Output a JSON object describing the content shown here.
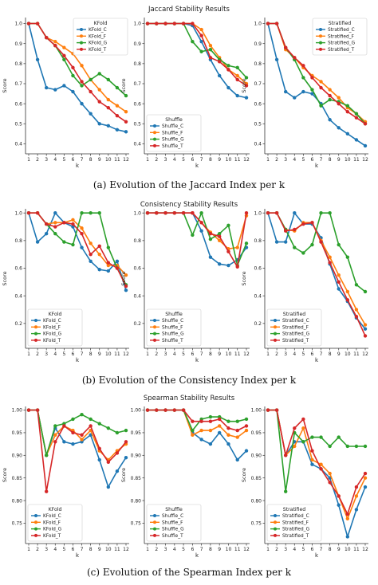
{
  "colors": {
    "C": "#1f77b4",
    "F": "#ff7f0e",
    "G": "#2ca02c",
    "T": "#d62728"
  },
  "chart_data": [
    {
      "type": "line",
      "section_title": "Jaccard Stability Results",
      "caption": "(a) Evolution of the Jaccard Index per k",
      "xlabel": "k",
      "ylabel": "Score",
      "x": [
        1,
        2,
        3,
        4,
        5,
        6,
        7,
        8,
        9,
        10,
        11,
        12
      ],
      "ylim": [
        0.35,
        1.03
      ],
      "yticks": [
        "0.4",
        "0.5",
        "0.6",
        "0.7",
        "0.8",
        "0.9",
        "1.0"
      ],
      "legend_pos": [
        "upper-right",
        "lower-left",
        "upper-right"
      ],
      "panels": [
        {
          "legend_title": "KFold",
          "series": [
            {
              "name": "KFold_C",
              "key": "C",
              "values": [
                1.0,
                0.82,
                0.68,
                0.67,
                0.69,
                0.66,
                0.6,
                0.55,
                0.5,
                0.49,
                0.47,
                0.46
              ]
            },
            {
              "name": "KFold_F",
              "key": "F",
              "values": [
                1.0,
                1.0,
                0.93,
                0.91,
                0.88,
                0.85,
                0.79,
                0.72,
                0.67,
                0.62,
                0.59,
                0.56
              ]
            },
            {
              "name": "KFold_G",
              "key": "G",
              "values": [
                1.0,
                1.0,
                0.93,
                0.89,
                0.82,
                0.74,
                0.69,
                0.72,
                0.75,
                0.72,
                0.68,
                0.64
              ]
            },
            {
              "name": "KFold_T",
              "key": "T",
              "values": [
                1.0,
                1.0,
                0.93,
                0.89,
                0.84,
                0.78,
                0.71,
                0.66,
                0.61,
                0.58,
                0.54,
                0.51
              ]
            }
          ]
        },
        {
          "legend_title": "Shuffle",
          "series": [
            {
              "name": "Shuffle_C",
              "key": "C",
              "values": [
                1.0,
                1.0,
                1.0,
                1.0,
                1.0,
                0.99,
                0.91,
                0.82,
                0.74,
                0.68,
                0.64,
                0.63
              ]
            },
            {
              "name": "Shuffle_F",
              "key": "F",
              "values": [
                1.0,
                1.0,
                1.0,
                1.0,
                1.0,
                1.0,
                0.97,
                0.89,
                0.83,
                0.77,
                0.74,
                0.7
              ]
            },
            {
              "name": "Shuffle_G",
              "key": "G",
              "values": [
                1.0,
                1.0,
                1.0,
                1.0,
                1.0,
                0.91,
                0.86,
                0.87,
                0.82,
                0.79,
                0.78,
                0.73
              ]
            },
            {
              "name": "Shuffle_T",
              "key": "T",
              "values": [
                1.0,
                1.0,
                1.0,
                1.0,
                1.0,
                1.0,
                0.94,
                0.83,
                0.81,
                0.77,
                0.72,
                0.69
              ]
            }
          ]
        },
        {
          "legend_title": "Stratified",
          "series": [
            {
              "name": "Stratified_C",
              "key": "C",
              "values": [
                1.0,
                0.82,
                0.66,
                0.63,
                0.66,
                0.65,
                0.6,
                0.52,
                0.48,
                0.45,
                0.42,
                0.39
              ]
            },
            {
              "name": "Stratified_F",
              "key": "F",
              "values": [
                1.0,
                1.0,
                0.87,
                0.83,
                0.78,
                0.74,
                0.71,
                0.67,
                0.63,
                0.58,
                0.55,
                0.51
              ]
            },
            {
              "name": "Stratified_G",
              "key": "G",
              "values": [
                1.0,
                1.0,
                0.88,
                0.82,
                0.73,
                0.67,
                0.59,
                0.62,
                0.61,
                0.59,
                0.55,
                0.5
              ]
            },
            {
              "name": "Stratified_T",
              "key": "T",
              "values": [
                1.0,
                1.0,
                0.88,
                0.83,
                0.79,
                0.73,
                0.68,
                0.64,
                0.6,
                0.56,
                0.53,
                0.5
              ]
            }
          ]
        }
      ]
    },
    {
      "type": "line",
      "section_title": "Consistency Stability Results",
      "caption": "(b) Evolution of the Consistency Index per k",
      "xlabel": "k",
      "ylabel": "Score",
      "x": [
        1,
        2,
        3,
        4,
        5,
        6,
        7,
        8,
        9,
        10,
        11,
        12
      ],
      "ylim": [
        0.02,
        1.03
      ],
      "yticks": [
        "0.2",
        "0.4",
        "0.6",
        "0.8",
        "1.0"
      ],
      "legend_pos": [
        "lower-left",
        "lower-left",
        "lower-left"
      ],
      "panels": [
        {
          "legend_title": "KFold",
          "series": [
            {
              "name": "KFold_C",
              "key": "C",
              "values": [
                1.0,
                0.79,
                0.85,
                1.0,
                0.93,
                0.9,
                0.75,
                0.65,
                0.59,
                0.58,
                0.65,
                0.44
              ]
            },
            {
              "name": "KFold_F",
              "key": "F",
              "values": [
                1.0,
                1.0,
                0.92,
                0.93,
                0.93,
                0.95,
                0.89,
                0.78,
                0.7,
                0.62,
                0.62,
                0.55
              ]
            },
            {
              "name": "KFold_G",
              "key": "G",
              "values": [
                1.0,
                1.0,
                0.92,
                0.85,
                0.79,
                0.77,
                1.0,
                1.0,
                1.0,
                0.75,
                0.6,
                0.48
              ]
            },
            {
              "name": "KFold_T",
              "key": "T",
              "values": [
                1.0,
                1.0,
                0.92,
                0.9,
                0.93,
                0.92,
                0.85,
                0.7,
                0.76,
                0.64,
                0.6,
                0.47
              ]
            }
          ]
        },
        {
          "legend_title": "Shuffle",
          "series": [
            {
              "name": "Shuffle_C",
              "key": "C",
              "values": [
                1.0,
                1.0,
                1.0,
                1.0,
                1.0,
                1.0,
                0.87,
                0.68,
                0.63,
                0.62,
                0.66,
                0.75
              ]
            },
            {
              "name": "Shuffle_F",
              "key": "F",
              "values": [
                1.0,
                1.0,
                1.0,
                1.0,
                1.0,
                1.0,
                0.93,
                0.86,
                0.8,
                0.74,
                0.75,
                0.98
              ]
            },
            {
              "name": "Shuffle_G",
              "key": "G",
              "values": [
                1.0,
                1.0,
                1.0,
                1.0,
                1.0,
                0.84,
                1.0,
                0.81,
                0.85,
                0.91,
                0.62,
                0.78
              ]
            },
            {
              "name": "Shuffle_T",
              "key": "T",
              "values": [
                1.0,
                1.0,
                1.0,
                1.0,
                1.0,
                1.0,
                0.93,
                0.85,
                0.83,
                0.72,
                0.61,
                1.0
              ]
            }
          ]
        },
        {
          "legend_title": "Stratified",
          "series": [
            {
              "name": "Stratified_C",
              "key": "C",
              "values": [
                1.0,
                0.79,
                0.79,
                1.0,
                0.92,
                0.92,
                0.82,
                0.63,
                0.45,
                0.36,
                0.24,
                0.16
              ]
            },
            {
              "name": "Stratified_F",
              "key": "F",
              "values": [
                1.0,
                1.0,
                0.88,
                0.87,
                0.93,
                0.93,
                0.8,
                0.68,
                0.55,
                0.43,
                0.3,
                0.19
              ]
            },
            {
              "name": "Stratified_G",
              "key": "G",
              "values": [
                1.0,
                1.0,
                0.88,
                0.75,
                0.71,
                0.77,
                1.0,
                1.0,
                0.77,
                0.68,
                0.48,
                0.43
              ]
            },
            {
              "name": "Stratified_T",
              "key": "T",
              "values": [
                1.0,
                1.0,
                0.87,
                0.88,
                0.92,
                0.93,
                0.79,
                0.64,
                0.5,
                0.37,
                0.25,
                0.11
              ]
            }
          ]
        }
      ]
    },
    {
      "type": "line",
      "section_title": "Spearman Stability Results",
      "caption": "(c) Evolution of the Spearman Index per k",
      "xlabel": "k",
      "ylabel": "Score",
      "x": [
        1,
        2,
        3,
        4,
        5,
        6,
        7,
        8,
        9,
        10,
        11,
        12
      ],
      "ylim": [
        0.705,
        1.008
      ],
      "yticks": [
        "0.75",
        "0.80",
        "0.85",
        "0.90",
        "0.95",
        "1.00"
      ],
      "legend_pos": [
        "lower-left",
        "lower-left",
        "lower-left"
      ],
      "panels": [
        {
          "legend_title": "KFold",
          "series": [
            {
              "name": "KFold_C",
              "key": "C",
              "values": [
                1.0,
                1.0,
                0.9,
                0.96,
                0.93,
                0.925,
                0.93,
                0.945,
                0.89,
                0.83,
                0.865,
                0.895
              ]
            },
            {
              "name": "KFold_F",
              "key": "F",
              "values": [
                1.0,
                1.0,
                0.9,
                0.945,
                0.965,
                0.955,
                0.935,
                0.955,
                0.91,
                0.89,
                0.91,
                0.925
              ]
            },
            {
              "name": "KFold_G",
              "key": "G",
              "values": [
                1.0,
                1.0,
                0.9,
                0.965,
                0.97,
                0.98,
                0.99,
                0.98,
                0.97,
                0.96,
                0.95,
                0.955
              ]
            },
            {
              "name": "KFold_T",
              "key": "T",
              "values": [
                1.0,
                1.0,
                0.82,
                0.93,
                0.965,
                0.95,
                0.945,
                0.965,
                0.915,
                0.885,
                0.905,
                0.93
              ]
            }
          ]
        },
        {
          "legend_title": "Shuffle",
          "series": [
            {
              "name": "Shuffle_C",
              "key": "C",
              "values": [
                1.0,
                1.0,
                1.0,
                1.0,
                1.0,
                0.95,
                0.935,
                0.925,
                0.95,
                0.925,
                0.89,
                0.91
              ]
            },
            {
              "name": "Shuffle_F",
              "key": "F",
              "values": [
                1.0,
                1.0,
                1.0,
                1.0,
                1.0,
                0.945,
                0.955,
                0.955,
                0.965,
                0.945,
                0.94,
                0.955
              ]
            },
            {
              "name": "Shuffle_G",
              "key": "G",
              "values": [
                1.0,
                1.0,
                1.0,
                1.0,
                1.0,
                0.955,
                0.98,
                0.985,
                0.985,
                0.975,
                0.975,
                0.98
              ]
            },
            {
              "name": "Shuffle_T",
              "key": "T",
              "values": [
                1.0,
                1.0,
                1.0,
                1.0,
                1.0,
                0.975,
                0.975,
                0.975,
                0.98,
                0.96,
                0.955,
                0.965
              ]
            }
          ]
        },
        {
          "legend_title": "Stratified",
          "series": [
            {
              "name": "Stratified_C",
              "key": "C",
              "values": [
                1.0,
                1.0,
                0.9,
                0.93,
                0.93,
                0.88,
                0.87,
                0.85,
                0.79,
                0.72,
                0.78,
                0.83
              ]
            },
            {
              "name": "Stratified_F",
              "key": "F",
              "values": [
                1.0,
                1.0,
                0.9,
                0.92,
                0.96,
                0.89,
                0.88,
                0.86,
                0.81,
                0.76,
                0.81,
                0.85
              ]
            },
            {
              "name": "Stratified_G",
              "key": "G",
              "values": [
                1.0,
                1.0,
                0.82,
                0.95,
                0.93,
                0.94,
                0.94,
                0.92,
                0.94,
                0.92,
                0.92,
                0.92
              ]
            },
            {
              "name": "Stratified_T",
              "key": "T",
              "values": [
                1.0,
                1.0,
                0.9,
                0.96,
                0.98,
                0.91,
                0.87,
                0.84,
                0.81,
                0.77,
                0.83,
                0.86
              ]
            }
          ]
        }
      ]
    }
  ]
}
